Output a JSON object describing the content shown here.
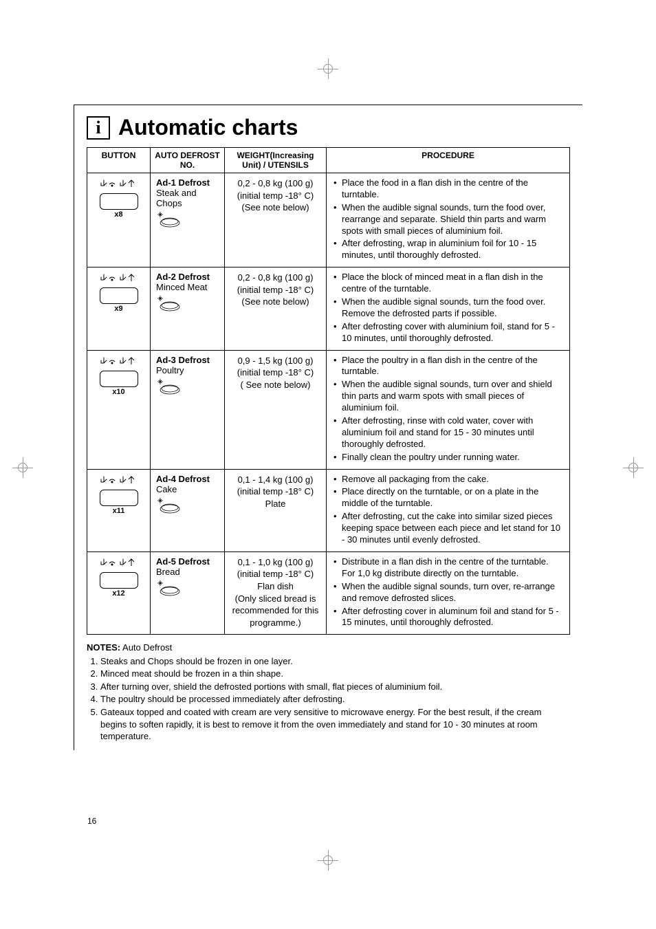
{
  "title": "Automatic charts",
  "table": {
    "headers": {
      "button": "BUTTON",
      "auto_no": "AUTO DEFROST NO.",
      "weight": "WEIGHT(Increasing Unit) / UTENSILS",
      "procedure": "PROCEDURE"
    },
    "rows": [
      {
        "count": "x8",
        "no_label": "Ad-1 Defrost",
        "no_sub": "Steak and Chops",
        "weight_lines": [
          "0,2 - 0,8 kg (100 g)",
          "(initial temp -18° C)",
          "(See note below)"
        ],
        "procedure": [
          "Place the food in a flan dish in the centre of the turntable.",
          "When the audible signal sounds, turn the food over, rearrange and separate. Shield thin parts and warm spots with small pieces of aluminium foil.",
          "After defrosting, wrap in aluminium foil for 10 - 15 minutes, until thoroughly defrosted."
        ]
      },
      {
        "count": "x9",
        "no_label": "Ad-2 Defrost",
        "no_sub": "Minced Meat",
        "weight_lines": [
          "0,2 - 0,8 kg (100 g)",
          "(initial temp -18° C)",
          "(See note below)"
        ],
        "procedure": [
          "Place the block of minced meat in a flan dish in the centre of the turntable.",
          "When the audible signal sounds, turn the food over. Remove the defrosted parts if possible.",
          "After defrosting cover with aluminium foil, stand for 5 - 10 minutes, until thoroughly defrosted."
        ]
      },
      {
        "count": "x10",
        "no_label": "Ad-3 Defrost",
        "no_sub": "Poultry",
        "weight_lines": [
          "0,9 - 1,5 kg (100 g)",
          "(initial temp -18° C)",
          "( See note below)"
        ],
        "procedure": [
          "Place the poultry in a flan dish in the centre of the turntable.",
          "When the audible signal sounds, turn over and shield thin parts and warm spots with small pieces of aluminium foil.",
          "After defrosting, rinse with cold water, cover with aluminium foil and stand for 15 - 30 minutes until thoroughly defrosted.",
          "Finally clean the poultry under running water."
        ]
      },
      {
        "count": "x11",
        "no_label": "Ad-4 Defrost",
        "no_sub": "Cake",
        "weight_lines": [
          "0,1 - 1,4 kg (100 g)",
          "(initial temp -18° C)",
          "Plate"
        ],
        "procedure": [
          "Remove all packaging from the cake.",
          "Place directly on the turntable, or on a plate in the middle of the turntable.",
          "After defrosting, cut the cake into similar sized pieces keeping space between each piece and let stand for 10 - 30 minutes until evenly defrosted."
        ]
      },
      {
        "count": "x12",
        "no_label": "Ad-5 Defrost",
        "no_sub": "Bread",
        "weight_lines": [
          "0,1 - 1,0 kg (100 g)",
          "(initial temp -18° C)",
          "Flan dish",
          "(Only sliced bread is recommended for this programme.)"
        ],
        "procedure": [
          "Distribute in a flan dish in the centre of the turntable. For 1,0 kg distribute directly on the turntable.",
          "When the audible signal sounds, turn over, re-arrange and remove defrosted slices.",
          "After defrosting cover in aluminum foil and stand for 5 - 15 minutes, until thoroughly defrosted."
        ]
      }
    ]
  },
  "notes": {
    "heading": "NOTES:",
    "heading_sub": "Auto Defrost",
    "items": [
      "Steaks and Chops should be frozen in one layer.",
      "Minced meat should be frozen in a thin shape.",
      "After turning over, shield the defrosted portions with small, flat pieces of aluminium foil.",
      "The poultry should be processed immediately after defrosting.",
      "Gateaux topped and coated with cream are very sensitive to microwave energy. For the best result, if the cream begins to soften rapidly, it is best to remove it from the oven immediately and stand for 10 - 30 minutes at room temperature."
    ]
  },
  "page_number": "16"
}
